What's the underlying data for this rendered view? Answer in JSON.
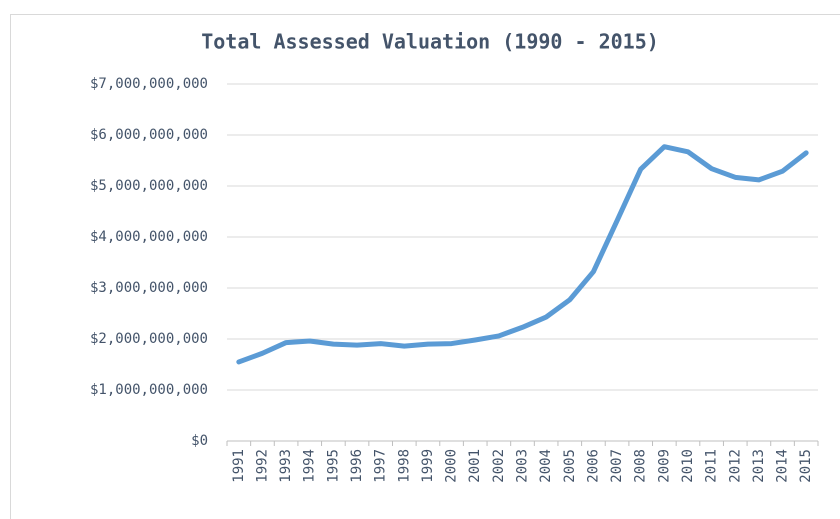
{
  "chart_data": {
    "type": "line",
    "title": "Total Assessed Valuation (1990 - 2015)",
    "categories": [
      "1991",
      "1992",
      "1993",
      "1994",
      "1995",
      "1996",
      "1997",
      "1998",
      "1999",
      "2000",
      "2001",
      "2002",
      "2003",
      "2004",
      "2005",
      "2006",
      "2007",
      "2008",
      "2009",
      "2010",
      "2011",
      "2012",
      "2013",
      "2014",
      "2015"
    ],
    "series": [
      {
        "name": "Total Assessed Valuation",
        "color": "#5b9bd5",
        "values": [
          1550000000,
          1720000000,
          1930000000,
          1960000000,
          1900000000,
          1880000000,
          1910000000,
          1860000000,
          1900000000,
          1910000000,
          1980000000,
          2060000000,
          2230000000,
          2430000000,
          2770000000,
          3320000000,
          4320000000,
          5330000000,
          5770000000,
          5670000000,
          5340000000,
          5170000000,
          5120000000,
          5290000000,
          5650000000
        ]
      }
    ],
    "ylim": [
      0,
      7000000000
    ],
    "yticks": [
      {
        "value": 0,
        "label": "$0"
      },
      {
        "value": 1000000000,
        "label": "$1,000,000,000"
      },
      {
        "value": 2000000000,
        "label": "$2,000,000,000"
      },
      {
        "value": 3000000000,
        "label": "$3,000,000,000"
      },
      {
        "value": 4000000000,
        "label": "$4,000,000,000"
      },
      {
        "value": 5000000000,
        "label": "$5,000,000,000"
      },
      {
        "value": 6000000000,
        "label": "$6,000,000,000"
      },
      {
        "value": 7000000000,
        "label": "$7,000,000,000"
      }
    ],
    "grid": true
  }
}
